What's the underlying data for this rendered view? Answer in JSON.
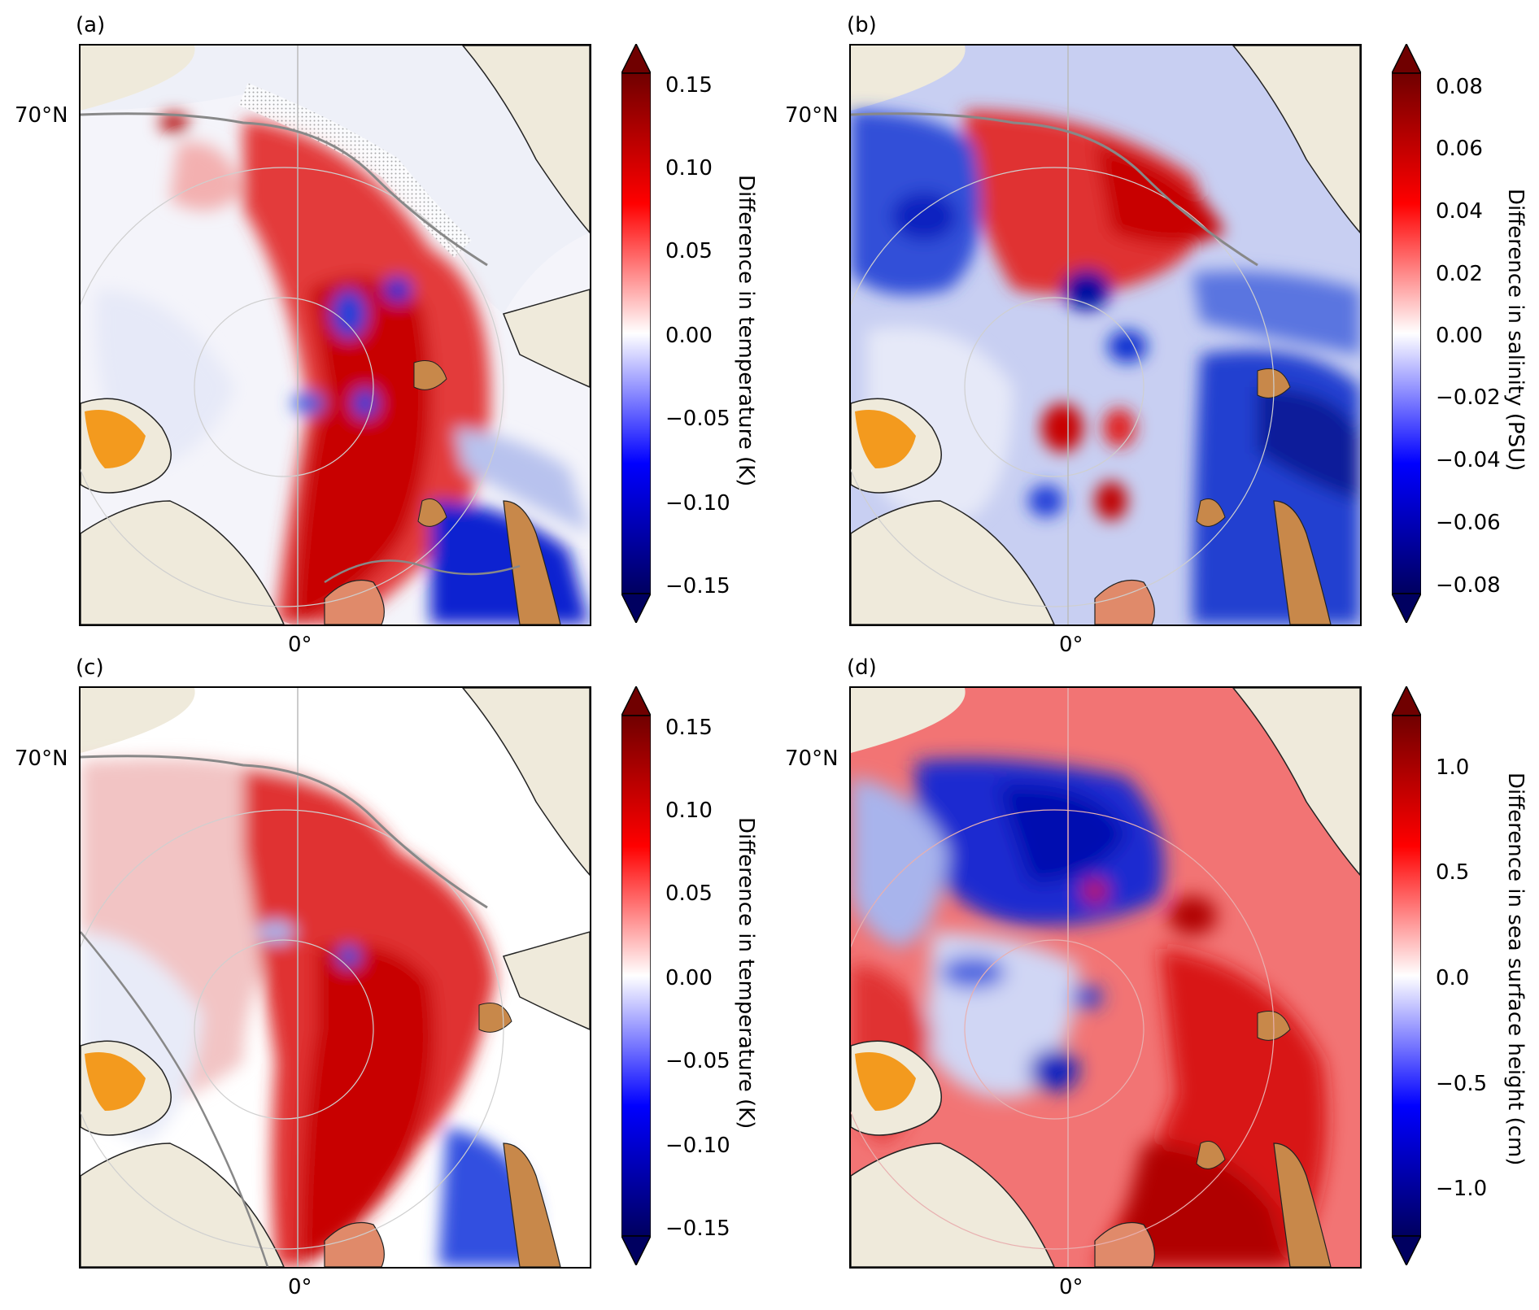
{
  "panels": [
    {
      "label": "(a)",
      "lat_label": "70°N",
      "lon_label": "0°",
      "colorbar": {
        "title": "Difference in temperature (K)",
        "ticks": [
          "0.15",
          "0.10",
          "0.05",
          "0.00",
          "−0.05",
          "−0.10",
          "−0.15"
        ]
      }
    },
    {
      "label": "(b)",
      "lat_label": "70°N",
      "lon_label": "0°",
      "colorbar": {
        "title": "Difference in salinity (PSU)",
        "ticks": [
          "0.08",
          "0.06",
          "0.04",
          "0.02",
          "0.00",
          "−0.02",
          "−0.04",
          "−0.06",
          "−0.08"
        ]
      }
    },
    {
      "label": "(c)",
      "lat_label": "70°N",
      "lon_label": "0°",
      "colorbar": {
        "title": "Difference in temperature (K)",
        "ticks": [
          "0.15",
          "0.10",
          "0.05",
          "0.00",
          "−0.05",
          "−0.10",
          "−0.15"
        ]
      }
    },
    {
      "label": "(d)",
      "lat_label": "70°N",
      "lon_label": "0°",
      "colorbar": {
        "title": "Difference in sea surface height (cm)",
        "ticks": [
          "1.0",
          "0.5",
          "0.0",
          "−0.5",
          "−1.0"
        ]
      }
    }
  ],
  "colors": {
    "land": "#efeadb",
    "positive": "#d40000",
    "negative": "#0010c8",
    "zero": "#ffffff",
    "contour": "#888888",
    "greenland_ice": "#f39a1e",
    "svalbard": "#c8884a"
  }
}
